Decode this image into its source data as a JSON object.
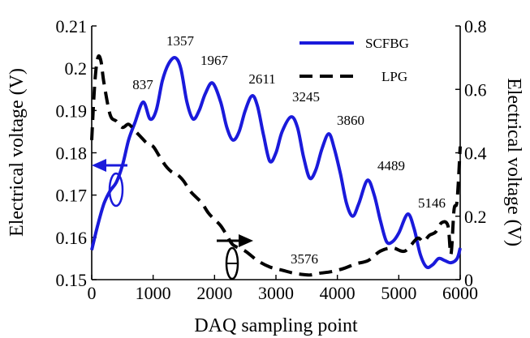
{
  "chart_data": {
    "type": "line",
    "xlabel": "DAQ sampling point",
    "ylabel_left": "Electrical voltage (V)",
    "ylabel_right": "Electrical voltage (V)",
    "xlim": [
      0,
      6000
    ],
    "ylim_left": [
      0.15,
      0.21
    ],
    "ylim_right": [
      0,
      0.8
    ],
    "x_ticks": [
      0,
      1000,
      2000,
      3000,
      4000,
      5000,
      6000
    ],
    "x_tick_labels": [
      "0",
      "1000",
      "2000",
      "3000",
      "4000",
      "5000",
      "6000"
    ],
    "y_left_ticks": [
      0.15,
      0.16,
      0.17,
      0.18,
      0.19,
      0.2,
      0.21
    ],
    "y_left_tick_labels": [
      "0.15",
      "0.16",
      "0.17",
      "0.18",
      "0.19",
      "0.2",
      "0.21"
    ],
    "y_right_ticks": [
      0,
      0.2,
      0.4,
      0.6,
      0.8
    ],
    "y_right_tick_labels": [
      "0",
      "0.2",
      "0.4",
      "0.6",
      "0.8"
    ],
    "grid": false,
    "legend_position": "top-right",
    "series": [
      {
        "name": "SCFBG",
        "axis": "left",
        "color": "#1a1adb",
        "style": "solid",
        "x": [
          0,
          100,
          200,
          300,
          400,
          500,
          600,
          700,
          837,
          950,
          1050,
          1150,
          1250,
          1357,
          1450,
          1550,
          1650,
          1750,
          1850,
          1967,
          2100,
          2200,
          2300,
          2400,
          2500,
          2611,
          2700,
          2800,
          2900,
          3000,
          3100,
          3245,
          3350,
          3450,
          3550,
          3650,
          3750,
          3860,
          3950,
          4050,
          4150,
          4250,
          4350,
          4489,
          4600,
          4700,
          4800,
          4900,
          5000,
          5146,
          5250,
          5350,
          5450,
          5550,
          5650,
          5750,
          5850,
          5950,
          6000
        ],
        "y": [
          0.157,
          0.163,
          0.168,
          0.171,
          0.173,
          0.177,
          0.183,
          0.187,
          0.192,
          0.188,
          0.19,
          0.197,
          0.201,
          0.2025,
          0.2,
          0.192,
          0.188,
          0.19,
          0.194,
          0.1965,
          0.192,
          0.186,
          0.183,
          0.185,
          0.19,
          0.1935,
          0.191,
          0.184,
          0.178,
          0.18,
          0.185,
          0.1885,
          0.186,
          0.179,
          0.174,
          0.176,
          0.181,
          0.1845,
          0.181,
          0.175,
          0.168,
          0.165,
          0.168,
          0.1735,
          0.17,
          0.164,
          0.159,
          0.159,
          0.161,
          0.1655,
          0.162,
          0.156,
          0.153,
          0.1535,
          0.155,
          0.1545,
          0.154,
          0.155,
          0.1575
        ]
      },
      {
        "name": "LPG",
        "axis": "right",
        "color": "#000000",
        "style": "dashed",
        "x": [
          0,
          50,
          100,
          150,
          200,
          300,
          400,
          500,
          600,
          700,
          800,
          900,
          1000,
          1100,
          1200,
          1300,
          1400,
          1500,
          1600,
          1700,
          1800,
          1900,
          2000,
          2100,
          2200,
          2300,
          2500,
          2700,
          2900,
          3100,
          3300,
          3500,
          3576,
          3700,
          3900,
          4100,
          4300,
          4500,
          4700,
          4900,
          5100,
          5300,
          5400,
          5500,
          5600,
          5700,
          5800,
          5850,
          5900,
          5950,
          6000
        ],
        "y": [
          0.44,
          0.62,
          0.7,
          0.69,
          0.62,
          0.52,
          0.5,
          0.48,
          0.49,
          0.47,
          0.45,
          0.43,
          0.42,
          0.39,
          0.36,
          0.34,
          0.33,
          0.31,
          0.28,
          0.26,
          0.24,
          0.21,
          0.19,
          0.17,
          0.14,
          0.11,
          0.09,
          0.06,
          0.04,
          0.03,
          0.02,
          0.015,
          0.015,
          0.02,
          0.025,
          0.035,
          0.05,
          0.06,
          0.09,
          0.1,
          0.09,
          0.13,
          0.12,
          0.14,
          0.15,
          0.18,
          0.17,
          0.08,
          0.22,
          0.25,
          0.42
        ]
      }
    ],
    "peak_annotations": [
      "837",
      "1357",
      "1967",
      "2611",
      "3245",
      "3860",
      "4489",
      "5146",
      "3576"
    ]
  }
}
